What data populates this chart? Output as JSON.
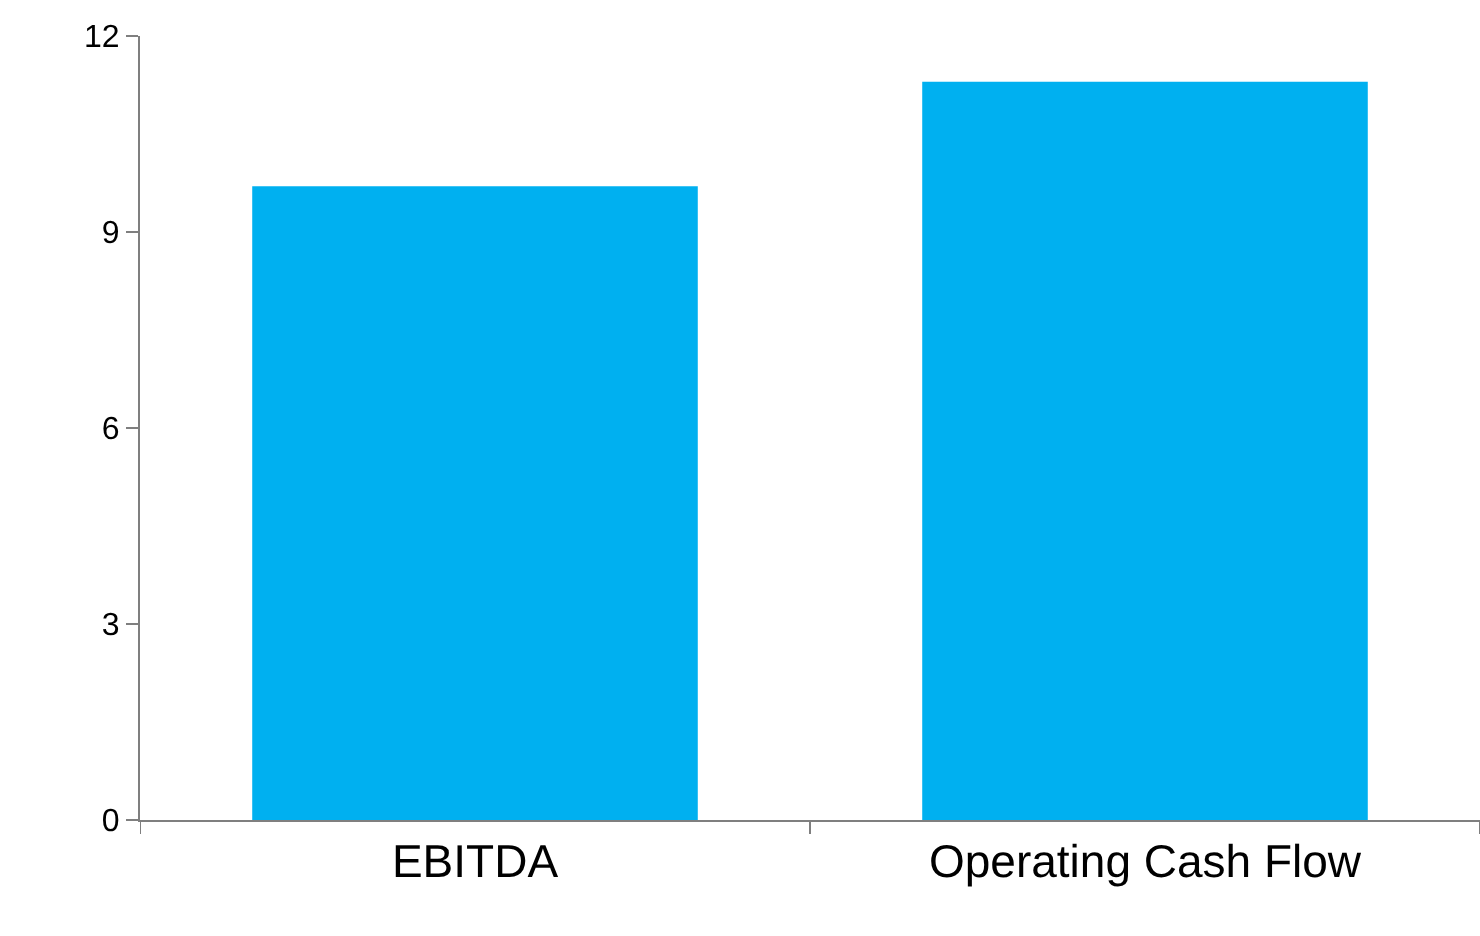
{
  "chart_data": {
    "type": "bar",
    "categories": [
      "EBITDA",
      "Operating Cash Flow"
    ],
    "values": [
      9.7,
      11.3
    ],
    "color": "#00b0f0",
    "ylim": [
      0,
      12
    ],
    "yticks": [
      0,
      3,
      6,
      9,
      12
    ],
    "grid": false
  }
}
